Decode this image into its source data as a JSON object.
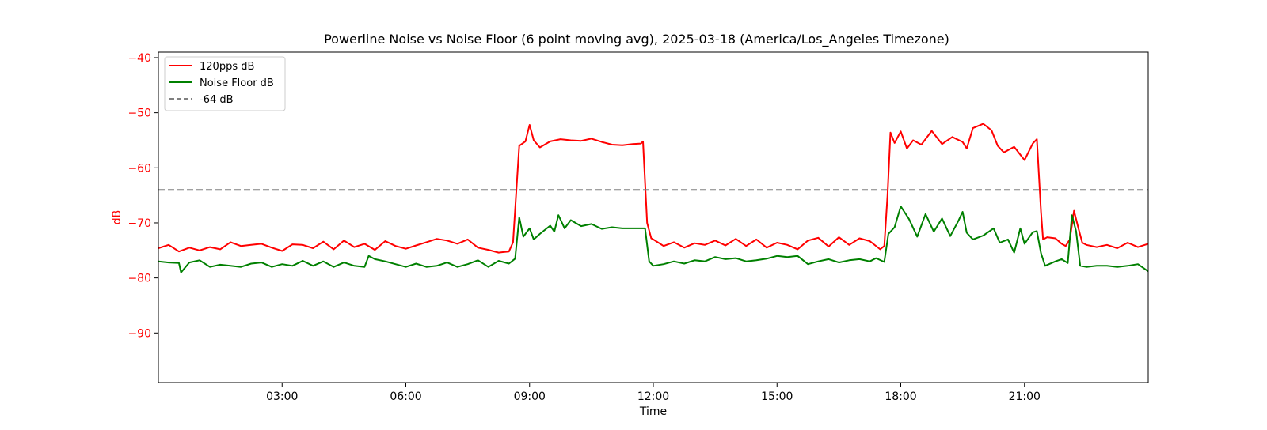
{
  "chart_data": {
    "type": "line",
    "title": "Powerline Noise vs Noise Floor (6 point moving avg), 2025-03-18 (America/Los_Angeles Timezone)",
    "xlabel": "Time",
    "ylabel": "dB",
    "xlim": [
      0,
      24
    ],
    "ylim": [
      -99,
      -39
    ],
    "x_ticks": [
      {
        "value": 3,
        "label": "03:00"
      },
      {
        "value": 6,
        "label": "06:00"
      },
      {
        "value": 9,
        "label": "09:00"
      },
      {
        "value": 12,
        "label": "12:00"
      },
      {
        "value": 15,
        "label": "15:00"
      },
      {
        "value": 18,
        "label": "18:00"
      },
      {
        "value": 21,
        "label": "21:00"
      }
    ],
    "y_ticks": [
      {
        "value": -40,
        "label": "−40"
      },
      {
        "value": -50,
        "label": "−50"
      },
      {
        "value": -60,
        "label": "−60"
      },
      {
        "value": -70,
        "label": "−70"
      },
      {
        "value": -80,
        "label": "−80"
      },
      {
        "value": -90,
        "label": "−90"
      }
    ],
    "y_axis_color": "#ff0000",
    "grid": false,
    "legend_position": "top-left",
    "series": [
      {
        "name": "120pps dB",
        "color": "#ff0000",
        "style": "solid",
        "points": [
          [
            0.0,
            -74.6
          ],
          [
            0.25,
            -74.0
          ],
          [
            0.5,
            -75.2
          ],
          [
            0.75,
            -74.5
          ],
          [
            1.0,
            -75.0
          ],
          [
            1.25,
            -74.4
          ],
          [
            1.5,
            -74.8
          ],
          [
            1.75,
            -73.5
          ],
          [
            2.0,
            -74.2
          ],
          [
            2.25,
            -74.0
          ],
          [
            2.5,
            -73.8
          ],
          [
            2.75,
            -74.5
          ],
          [
            3.0,
            -75.1
          ],
          [
            3.25,
            -73.9
          ],
          [
            3.5,
            -74.0
          ],
          [
            3.75,
            -74.6
          ],
          [
            4.0,
            -73.4
          ],
          [
            4.25,
            -74.8
          ],
          [
            4.5,
            -73.2
          ],
          [
            4.75,
            -74.4
          ],
          [
            5.0,
            -73.8
          ],
          [
            5.25,
            -74.9
          ],
          [
            5.5,
            -73.3
          ],
          [
            5.75,
            -74.2
          ],
          [
            6.0,
            -74.7
          ],
          [
            6.25,
            -74.1
          ],
          [
            6.5,
            -73.5
          ],
          [
            6.75,
            -72.9
          ],
          [
            7.0,
            -73.2
          ],
          [
            7.25,
            -73.8
          ],
          [
            7.5,
            -73.0
          ],
          [
            7.75,
            -74.5
          ],
          [
            8.0,
            -74.9
          ],
          [
            8.25,
            -75.4
          ],
          [
            8.5,
            -75.2
          ],
          [
            8.6,
            -73.5
          ],
          [
            8.75,
            -56.0
          ],
          [
            8.9,
            -55.2
          ],
          [
            9.0,
            -52.2
          ],
          [
            9.1,
            -55.0
          ],
          [
            9.25,
            -56.3
          ],
          [
            9.5,
            -55.2
          ],
          [
            9.75,
            -54.8
          ],
          [
            10.0,
            -55.0
          ],
          [
            10.25,
            -55.1
          ],
          [
            10.5,
            -54.7
          ],
          [
            10.75,
            -55.3
          ],
          [
            11.0,
            -55.8
          ],
          [
            11.25,
            -55.9
          ],
          [
            11.5,
            -55.7
          ],
          [
            11.7,
            -55.6
          ],
          [
            11.75,
            -55.2
          ],
          [
            11.85,
            -70.0
          ],
          [
            11.95,
            -72.8
          ],
          [
            12.0,
            -73.0
          ],
          [
            12.25,
            -74.2
          ],
          [
            12.5,
            -73.5
          ],
          [
            12.75,
            -74.5
          ],
          [
            13.0,
            -73.7
          ],
          [
            13.25,
            -74.0
          ],
          [
            13.5,
            -73.2
          ],
          [
            13.75,
            -74.1
          ],
          [
            14.0,
            -72.9
          ],
          [
            14.25,
            -74.2
          ],
          [
            14.5,
            -73.0
          ],
          [
            14.75,
            -74.5
          ],
          [
            15.0,
            -73.6
          ],
          [
            15.25,
            -74.0
          ],
          [
            15.5,
            -74.8
          ],
          [
            15.75,
            -73.2
          ],
          [
            16.0,
            -72.7
          ],
          [
            16.25,
            -74.3
          ],
          [
            16.5,
            -72.6
          ],
          [
            16.75,
            -74.0
          ],
          [
            17.0,
            -72.8
          ],
          [
            17.25,
            -73.3
          ],
          [
            17.5,
            -74.8
          ],
          [
            17.6,
            -74.2
          ],
          [
            17.68,
            -65.0
          ],
          [
            17.75,
            -53.6
          ],
          [
            17.85,
            -55.5
          ],
          [
            18.0,
            -53.4
          ],
          [
            18.15,
            -56.5
          ],
          [
            18.3,
            -55.0
          ],
          [
            18.5,
            -55.8
          ],
          [
            18.75,
            -53.3
          ],
          [
            19.0,
            -55.7
          ],
          [
            19.25,
            -54.4
          ],
          [
            19.5,
            -55.3
          ],
          [
            19.6,
            -56.5
          ],
          [
            19.75,
            -52.8
          ],
          [
            20.0,
            -52.0
          ],
          [
            20.2,
            -53.2
          ],
          [
            20.35,
            -56.0
          ],
          [
            20.5,
            -57.2
          ],
          [
            20.75,
            -56.2
          ],
          [
            21.0,
            -58.6
          ],
          [
            21.2,
            -55.6
          ],
          [
            21.3,
            -54.8
          ],
          [
            21.4,
            -68.0
          ],
          [
            21.45,
            -73.0
          ],
          [
            21.55,
            -72.6
          ],
          [
            21.75,
            -72.8
          ],
          [
            21.9,
            -73.8
          ],
          [
            22.0,
            -74.2
          ],
          [
            22.1,
            -73.0
          ],
          [
            22.2,
            -67.8
          ],
          [
            22.3,
            -70.8
          ],
          [
            22.4,
            -73.6
          ],
          [
            22.5,
            -74.0
          ],
          [
            22.75,
            -74.4
          ],
          [
            23.0,
            -74.0
          ],
          [
            23.25,
            -74.6
          ],
          [
            23.5,
            -73.6
          ],
          [
            23.75,
            -74.4
          ],
          [
            24.0,
            -73.8
          ]
        ]
      },
      {
        "name": "Noise Floor dB",
        "color": "#008000",
        "style": "solid",
        "points": [
          [
            0.0,
            -77.0
          ],
          [
            0.25,
            -77.2
          ],
          [
            0.5,
            -77.3
          ],
          [
            0.55,
            -79.0
          ],
          [
            0.75,
            -77.2
          ],
          [
            1.0,
            -76.8
          ],
          [
            1.25,
            -78.0
          ],
          [
            1.5,
            -77.6
          ],
          [
            1.75,
            -77.8
          ],
          [
            2.0,
            -78.0
          ],
          [
            2.25,
            -77.4
          ],
          [
            2.5,
            -77.2
          ],
          [
            2.75,
            -78.0
          ],
          [
            3.0,
            -77.5
          ],
          [
            3.25,
            -77.8
          ],
          [
            3.5,
            -76.9
          ],
          [
            3.75,
            -77.8
          ],
          [
            4.0,
            -77.0
          ],
          [
            4.25,
            -78.0
          ],
          [
            4.5,
            -77.2
          ],
          [
            4.75,
            -77.8
          ],
          [
            5.0,
            -78.0
          ],
          [
            5.1,
            -76.0
          ],
          [
            5.25,
            -76.6
          ],
          [
            5.5,
            -77.0
          ],
          [
            5.75,
            -77.5
          ],
          [
            6.0,
            -78.0
          ],
          [
            6.25,
            -77.4
          ],
          [
            6.5,
            -78.0
          ],
          [
            6.75,
            -77.8
          ],
          [
            7.0,
            -77.2
          ],
          [
            7.25,
            -78.0
          ],
          [
            7.5,
            -77.5
          ],
          [
            7.75,
            -76.8
          ],
          [
            8.0,
            -78.0
          ],
          [
            8.25,
            -76.9
          ],
          [
            8.5,
            -77.4
          ],
          [
            8.65,
            -76.5
          ],
          [
            8.75,
            -69.0
          ],
          [
            8.85,
            -72.5
          ],
          [
            9.0,
            -71.0
          ],
          [
            9.1,
            -73.0
          ],
          [
            9.25,
            -72.0
          ],
          [
            9.5,
            -70.5
          ],
          [
            9.6,
            -71.6
          ],
          [
            9.7,
            -68.6
          ],
          [
            9.85,
            -71.0
          ],
          [
            10.0,
            -69.5
          ],
          [
            10.25,
            -70.6
          ],
          [
            10.5,
            -70.2
          ],
          [
            10.75,
            -71.1
          ],
          [
            11.0,
            -70.8
          ],
          [
            11.25,
            -71.0
          ],
          [
            11.5,
            -71.0
          ],
          [
            11.8,
            -71.0
          ],
          [
            11.9,
            -77.0
          ],
          [
            12.0,
            -77.8
          ],
          [
            12.25,
            -77.5
          ],
          [
            12.5,
            -77.0
          ],
          [
            12.75,
            -77.4
          ],
          [
            13.0,
            -76.8
          ],
          [
            13.25,
            -77.0
          ],
          [
            13.5,
            -76.2
          ],
          [
            13.75,
            -76.6
          ],
          [
            14.0,
            -76.4
          ],
          [
            14.25,
            -77.0
          ],
          [
            14.5,
            -76.8
          ],
          [
            14.75,
            -76.5
          ],
          [
            15.0,
            -76.0
          ],
          [
            15.25,
            -76.2
          ],
          [
            15.5,
            -76.0
          ],
          [
            15.75,
            -77.5
          ],
          [
            16.0,
            -77.0
          ],
          [
            16.25,
            -76.6
          ],
          [
            16.5,
            -77.2
          ],
          [
            16.75,
            -76.8
          ],
          [
            17.0,
            -76.6
          ],
          [
            17.25,
            -77.0
          ],
          [
            17.4,
            -76.4
          ],
          [
            17.6,
            -77.1
          ],
          [
            17.7,
            -72.0
          ],
          [
            17.85,
            -70.8
          ],
          [
            18.0,
            -67.0
          ],
          [
            18.2,
            -69.3
          ],
          [
            18.4,
            -72.5
          ],
          [
            18.6,
            -68.4
          ],
          [
            18.8,
            -71.6
          ],
          [
            19.0,
            -69.2
          ],
          [
            19.2,
            -72.4
          ],
          [
            19.4,
            -69.6
          ],
          [
            19.5,
            -68.0
          ],
          [
            19.6,
            -71.8
          ],
          [
            19.75,
            -73.0
          ],
          [
            20.0,
            -72.3
          ],
          [
            20.25,
            -71.0
          ],
          [
            20.4,
            -73.6
          ],
          [
            20.6,
            -73.0
          ],
          [
            20.75,
            -75.4
          ],
          [
            20.9,
            -71.0
          ],
          [
            21.0,
            -73.8
          ],
          [
            21.2,
            -71.7
          ],
          [
            21.3,
            -71.5
          ],
          [
            21.4,
            -75.5
          ],
          [
            21.5,
            -77.8
          ],
          [
            21.75,
            -77.0
          ],
          [
            21.9,
            -76.6
          ],
          [
            22.05,
            -77.3
          ],
          [
            22.15,
            -68.6
          ],
          [
            22.25,
            -71.5
          ],
          [
            22.35,
            -77.8
          ],
          [
            22.5,
            -78.0
          ],
          [
            22.75,
            -77.8
          ],
          [
            23.0,
            -77.8
          ],
          [
            23.25,
            -78.0
          ],
          [
            23.5,
            -77.8
          ],
          [
            23.75,
            -77.5
          ],
          [
            24.0,
            -78.8
          ]
        ]
      },
      {
        "name": "-64 dB",
        "color": "#808080",
        "style": "dashed",
        "points": [
          [
            0,
            -64
          ],
          [
            24,
            -64
          ]
        ]
      }
    ]
  }
}
